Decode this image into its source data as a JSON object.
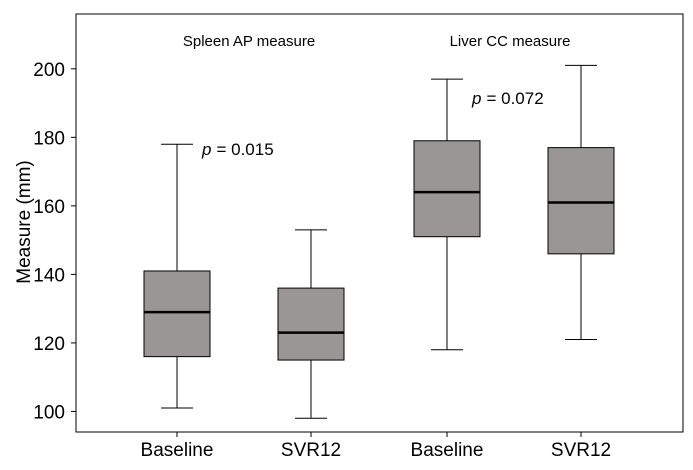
{
  "chart_data": {
    "type": "boxplot",
    "ylabel": "Measure (mm)",
    "ylim": [
      94,
      216
    ],
    "yticks": [
      100,
      120,
      140,
      160,
      180,
      200
    ],
    "categories": [
      "Baseline",
      "SVR12",
      "Baseline",
      "SVR12"
    ],
    "groups": [
      {
        "title": "Spleen AP measure",
        "p_prefix": "p",
        "p_value": "= 0.015"
      },
      {
        "title": "Liver CC measure",
        "p_prefix": "p",
        "p_value": "= 0.072"
      }
    ],
    "boxes": [
      {
        "group": 0,
        "category": "Baseline",
        "whisker_low": 101,
        "q1": 116,
        "median": 129,
        "q3": 141,
        "whisker_high": 178
      },
      {
        "group": 0,
        "category": "SVR12",
        "whisker_low": 98,
        "q1": 115,
        "median": 123,
        "q3": 136,
        "whisker_high": 153
      },
      {
        "group": 1,
        "category": "Baseline",
        "whisker_low": 118,
        "q1": 151,
        "median": 164,
        "q3": 179,
        "whisker_high": 197
      },
      {
        "group": 1,
        "category": "SVR12",
        "whisker_low": 121,
        "q1": 146,
        "median": 161,
        "q3": 177,
        "whisker_high": 201
      }
    ],
    "box_color": "#9b9696"
  }
}
